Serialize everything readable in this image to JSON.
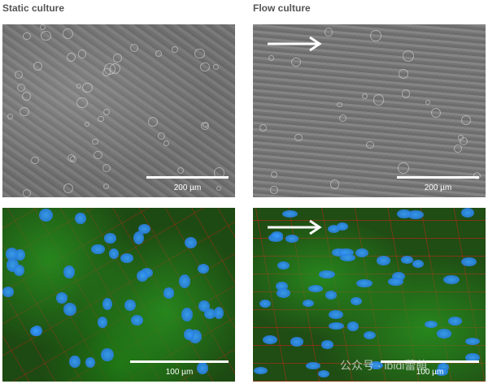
{
  "titles": {
    "static": "Static culture",
    "flow": "Flow culture"
  },
  "panels": {
    "top_left": {
      "scale": "200 µm"
    },
    "top_right": {
      "scale": "200 µm",
      "arrow": "flow-direction-arrow"
    },
    "bottom_left": {
      "scale": "100 µm"
    },
    "bottom_right": {
      "scale": "100 µm",
      "arrow": "flow-direction-arrow"
    }
  },
  "colors": {
    "nuclei": "#2f8fff",
    "actin": "#2e8b22",
    "junctions": "#c83214"
  },
  "watermark": "公众号 · ibidi蕾萌"
}
